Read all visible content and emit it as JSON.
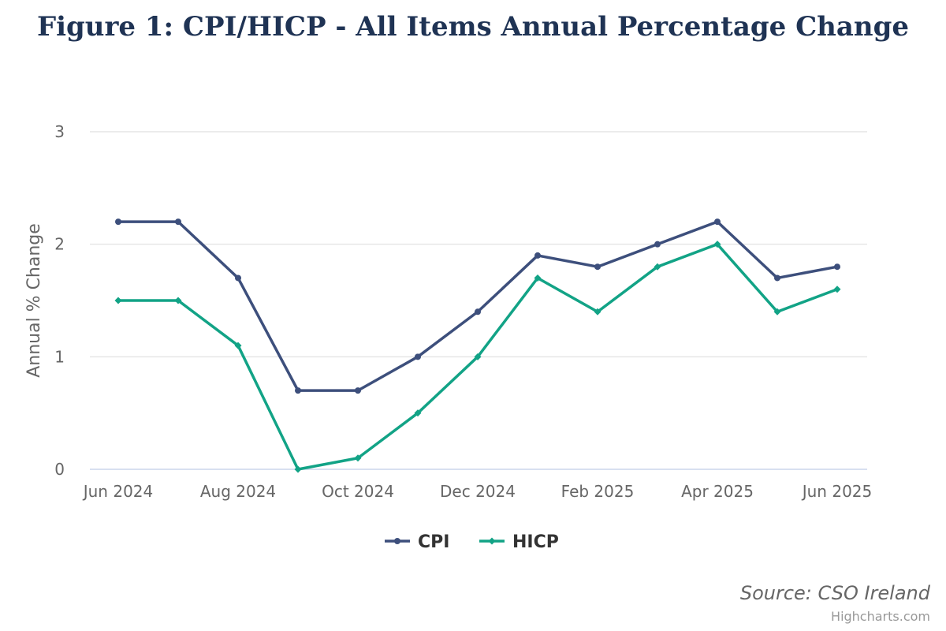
{
  "chart_data": {
    "type": "line",
    "title": "Figure 1: CPI/HICP - All Items Annual Percentage Change",
    "ylabel": "Annual % Change",
    "xlabel": "",
    "x": [
      "Jun 2024",
      "Jul 2024",
      "Aug 2024",
      "Sep 2024",
      "Oct 2024",
      "Nov 2024",
      "Dec 2024",
      "Jan 2025",
      "Feb 2025",
      "Mar 2025",
      "Apr 2025",
      "May 2025",
      "Jun 2025"
    ],
    "x_tick_labels": [
      "Jun 2024",
      "Aug 2024",
      "Oct 2024",
      "Dec 2024",
      "Feb 2025",
      "Apr 2025",
      "Jun 2025"
    ],
    "y_ticks": [
      0,
      1,
      2,
      3
    ],
    "ylim": [
      0,
      3
    ],
    "grid": true,
    "legend_position": "bottom-center",
    "series": [
      {
        "name": "CPI",
        "color": "#3d4f7c",
        "marker": "circle",
        "values": [
          2.2,
          2.2,
          1.7,
          0.7,
          0.7,
          1.0,
          1.4,
          1.9,
          1.8,
          2.0,
          2.2,
          1.7,
          1.8
        ]
      },
      {
        "name": "HICP",
        "color": "#12a386",
        "marker": "diamond",
        "values": [
          1.5,
          1.5,
          1.1,
          0.0,
          0.1,
          0.5,
          1.0,
          1.7,
          1.4,
          1.8,
          2.0,
          1.4,
          1.6
        ]
      }
    ],
    "source": "Source: CSO Ireland",
    "credits": "Highcharts.com"
  }
}
